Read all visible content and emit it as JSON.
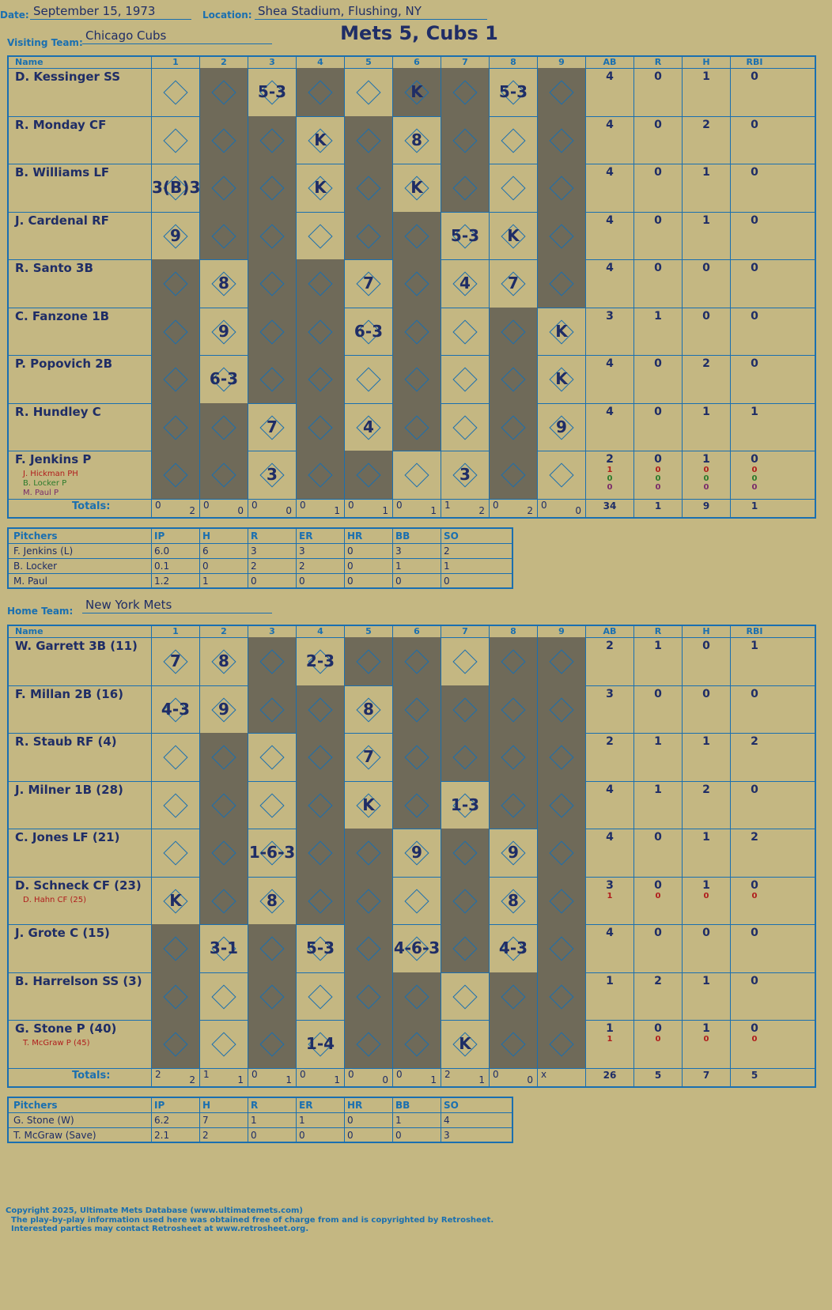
{
  "header": {
    "date_label": "Date:",
    "date": "September 15, 1973",
    "location_label": "Location:",
    "location": "Shea Stadium, Flushing, NY",
    "visiting_label": "Visiting Team:",
    "visiting_team": "Chicago Cubs",
    "home_label": "Home Team:",
    "home_team": "New York Mets",
    "result": "Mets 5, Cubs 1"
  },
  "columns": {
    "name": "Name",
    "innings": [
      "1",
      "2",
      "3",
      "4",
      "5",
      "6",
      "7",
      "8",
      "9"
    ],
    "stats": [
      "AB",
      "R",
      "H",
      "RBI"
    ]
  },
  "visiting": {
    "batters": [
      {
        "name": "D. Kessinger SS",
        "cells": [
          "",
          "",
          "5-3",
          "",
          "",
          "K",
          "",
          "5-3",
          ""
        ],
        "ab": "4",
        "r": "0",
        "h": "1",
        "rbi": "0"
      },
      {
        "name": "R. Monday CF",
        "cells": [
          "",
          "",
          "",
          "K",
          "",
          "8",
          "",
          "",
          ""
        ],
        "ab": "4",
        "r": "0",
        "h": "2",
        "rbi": "0"
      },
      {
        "name": "B. Williams LF",
        "cells": [
          "3(B)3",
          "",
          "",
          "K",
          "",
          "K",
          "",
          "",
          ""
        ],
        "ab": "4",
        "r": "0",
        "h": "1",
        "rbi": "0"
      },
      {
        "name": "J. Cardenal RF",
        "cells": [
          "9",
          "",
          "",
          "",
          "",
          "",
          "5-3",
          "K",
          ""
        ],
        "ab": "4",
        "r": "0",
        "h": "1",
        "rbi": "0"
      },
      {
        "name": "R. Santo 3B",
        "cells": [
          "",
          "8",
          "",
          "",
          "7",
          "",
          "4",
          "7",
          ""
        ],
        "ab": "4",
        "r": "0",
        "h": "0",
        "rbi": "0"
      },
      {
        "name": "C. Fanzone 1B",
        "cells": [
          "",
          "9",
          "",
          "",
          "6-3",
          "",
          "",
          "",
          "K"
        ],
        "ab": "3",
        "r": "1",
        "h": "0",
        "rbi": "0"
      },
      {
        "name": "P. Popovich 2B",
        "cells": [
          "",
          "6-3",
          "",
          "",
          "",
          "",
          "",
          "",
          "K"
        ],
        "ab": "4",
        "r": "0",
        "h": "2",
        "rbi": "0"
      },
      {
        "name": "R. Hundley C",
        "cells": [
          "",
          "",
          "7",
          "",
          "4",
          "",
          "",
          "",
          "9"
        ],
        "ab": "4",
        "r": "0",
        "h": "1",
        "rbi": "1"
      },
      {
        "name": "F. Jenkins P",
        "cells": [
          "",
          "",
          "3",
          "",
          "",
          "",
          "3",
          "",
          ""
        ],
        "ab": "2",
        "r": "0",
        "h": "1",
        "rbi": "0",
        "subs": [
          {
            "name": "J. Hickman PH",
            "color": "#b01c1c",
            "ab": "1",
            "r": "0",
            "h": "0",
            "rbi": "0"
          },
          {
            "name": "B. Locker P",
            "color": "#2b7a2b",
            "ab": "0",
            "r": "0",
            "h": "0",
            "rbi": "0"
          },
          {
            "name": "M. Paul P",
            "color": "#7a2b6a",
            "ab": "0",
            "r": "0",
            "h": "0",
            "rbi": "0"
          }
        ]
      }
    ],
    "dark": [
      [
        1,
        3,
        5,
        6,
        8
      ],
      [
        1,
        2,
        4,
        6,
        8
      ],
      [
        1,
        2,
        4,
        6,
        8
      ],
      [
        1,
        2,
        4,
        5,
        8
      ],
      [
        0,
        2,
        3,
        5,
        8
      ],
      [
        0,
        2,
        3,
        5,
        7
      ],
      [
        0,
        2,
        3,
        5,
        7
      ],
      [
        0,
        1,
        3,
        5,
        7
      ],
      [
        0,
        1,
        3,
        4,
        7
      ]
    ],
    "totals_label": "Totals:",
    "totals": [
      [
        "0",
        "2"
      ],
      [
        "0",
        "0"
      ],
      [
        "0",
        "0"
      ],
      [
        "0",
        "1"
      ],
      [
        "0",
        "1"
      ],
      [
        "0",
        "1"
      ],
      [
        "1",
        "2"
      ],
      [
        "0",
        "2"
      ],
      [
        "0",
        "0"
      ]
    ],
    "totals_stats": [
      "34",
      "1",
      "9",
      "1"
    ],
    "pitchers_header": [
      "Pitchers",
      "IP",
      "H",
      "R",
      "ER",
      "HR",
      "BB",
      "SO"
    ],
    "pitchers": [
      [
        "F. Jenkins (L)",
        "6.0",
        "6",
        "3",
        "3",
        "0",
        "3",
        "2"
      ],
      [
        "B. Locker",
        "0.1",
        "0",
        "2",
        "2",
        "0",
        "1",
        "1"
      ],
      [
        "M. Paul",
        "1.2",
        "1",
        "0",
        "0",
        "0",
        "0",
        "0"
      ]
    ]
  },
  "home": {
    "batters": [
      {
        "name": "W. Garrett 3B (11)",
        "cells": [
          "7",
          "8",
          "",
          "2-3",
          "",
          "",
          "",
          "",
          ""
        ],
        "ab": "2",
        "r": "1",
        "h": "0",
        "rbi": "1"
      },
      {
        "name": "F. Millan 2B (16)",
        "cells": [
          "4-3",
          "9",
          "",
          "",
          "8",
          "",
          "",
          "",
          ""
        ],
        "ab": "3",
        "r": "0",
        "h": "0",
        "rbi": "0"
      },
      {
        "name": "R. Staub RF (4)",
        "cells": [
          "",
          "",
          "",
          "",
          "7",
          "",
          "",
          "",
          ""
        ],
        "ab": "2",
        "r": "1",
        "h": "1",
        "rbi": "2"
      },
      {
        "name": "J. Milner 1B (28)",
        "cells": [
          "",
          "",
          "",
          "",
          "K",
          "",
          "1-3",
          "",
          ""
        ],
        "ab": "4",
        "r": "1",
        "h": "2",
        "rbi": "0"
      },
      {
        "name": "C. Jones LF (21)",
        "cells": [
          "",
          "",
          "1-6-3",
          "",
          "",
          "9",
          "",
          "9",
          ""
        ],
        "ab": "4",
        "r": "0",
        "h": "1",
        "rbi": "2"
      },
      {
        "name": "D. Schneck CF (23)",
        "cells": [
          "K",
          "",
          "8",
          "",
          "",
          "",
          "",
          "8",
          ""
        ],
        "ab": "3",
        "r": "0",
        "h": "1",
        "rbi": "0",
        "subs": [
          {
            "name": "D. Hahn CF (25)",
            "color": "#b01c1c",
            "ab": "1",
            "r": "0",
            "h": "0",
            "rbi": "0"
          }
        ]
      },
      {
        "name": "J. Grote C (15)",
        "cells": [
          "",
          "3-1",
          "",
          "5-3",
          "",
          "4-6-3",
          "",
          "4-3",
          ""
        ],
        "ab": "4",
        "r": "0",
        "h": "0",
        "rbi": "0"
      },
      {
        "name": "B. Harrelson SS (3)",
        "cells": [
          "",
          "",
          "",
          "",
          "",
          "",
          "",
          "",
          ""
        ],
        "ab": "1",
        "r": "2",
        "h": "1",
        "rbi": "0"
      },
      {
        "name": "G. Stone P (40)",
        "cells": [
          "",
          "",
          "",
          "1-4",
          "",
          "",
          "K",
          "",
          ""
        ],
        "ab": "1",
        "r": "0",
        "h": "1",
        "rbi": "0",
        "subs": [
          {
            "name": "T. McGraw P (45)",
            "color": "#b01c1c",
            "ab": "1",
            "r": "0",
            "h": "0",
            "rbi": "0"
          }
        ]
      }
    ],
    "dark": [
      [
        2,
        4,
        5,
        7,
        8
      ],
      [
        2,
        3,
        5,
        6,
        7,
        8
      ],
      [
        1,
        3,
        5,
        6,
        7,
        8
      ],
      [
        1,
        3,
        5,
        7,
        8
      ],
      [
        1,
        3,
        4,
        6,
        8
      ],
      [
        1,
        3,
        4,
        6,
        8
      ],
      [
        0,
        2,
        4,
        6,
        8
      ],
      [
        0,
        2,
        4,
        5,
        7,
        8
      ],
      [
        0,
        2,
        4,
        5,
        7,
        8
      ]
    ],
    "totals_label": "Totals:",
    "totals": [
      [
        "2",
        "2"
      ],
      [
        "1",
        "1"
      ],
      [
        "0",
        "1"
      ],
      [
        "0",
        "1"
      ],
      [
        "0",
        "0"
      ],
      [
        "0",
        "1"
      ],
      [
        "2",
        "1"
      ],
      [
        "0",
        "0"
      ],
      [
        "x",
        ""
      ]
    ],
    "totals_stats": [
      "26",
      "5",
      "7",
      "5"
    ],
    "pitchers_header": [
      "Pitchers",
      "IP",
      "H",
      "R",
      "ER",
      "HR",
      "BB",
      "SO"
    ],
    "pitchers": [
      [
        "G. Stone (W)",
        "6.2",
        "7",
        "1",
        "1",
        "0",
        "1",
        "4"
      ],
      [
        "T. McGraw (Save)",
        "2.1",
        "2",
        "0",
        "0",
        "0",
        "0",
        "3"
      ]
    ]
  },
  "footer": {
    "line1": "Copyright 2025, Ultimate Mets Database (www.ultimatemets.com)",
    "line2": "The play-by-play information used here was obtained free of charge from and is copyrighted by Retrosheet.",
    "line3": "Interested parties may contact Retrosheet at www.retrosheet.org."
  },
  "colors": {
    "background": "#c4b782",
    "dark_cell": "#6f6a59",
    "grid": "#1a6fb0",
    "ink": "#1f2d66",
    "accent_red": "#d21f1f"
  }
}
